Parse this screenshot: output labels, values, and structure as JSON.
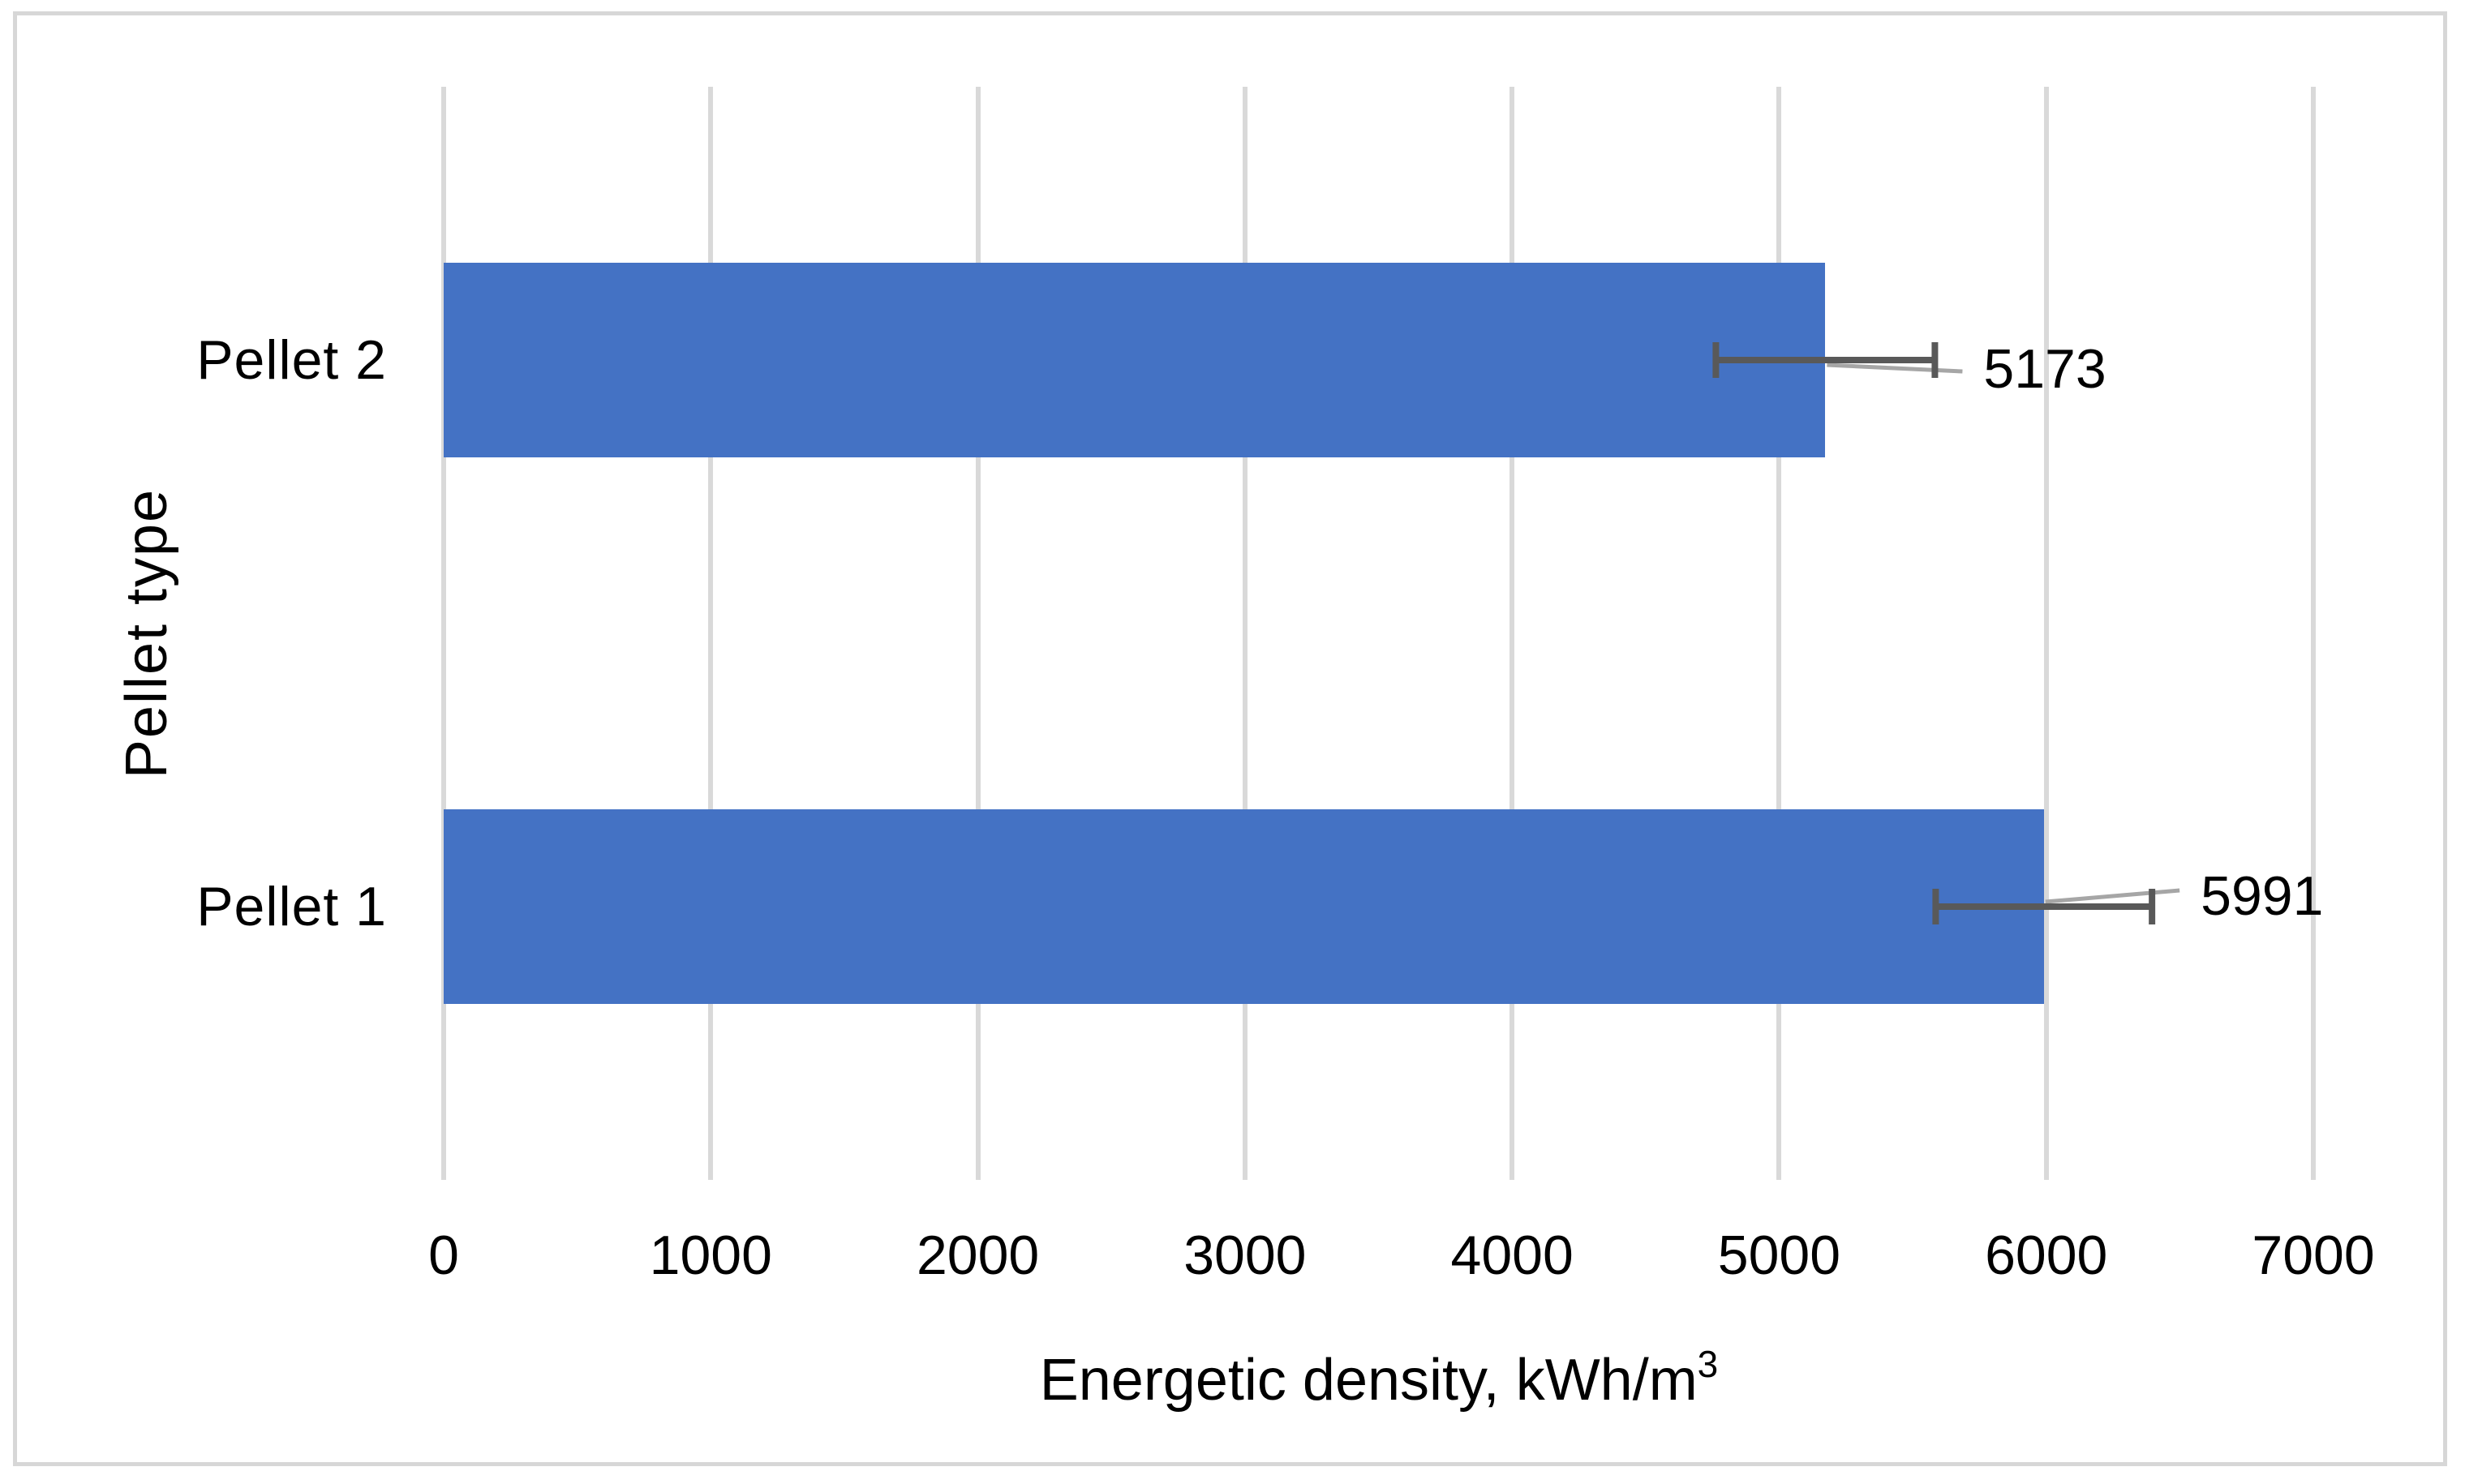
{
  "figure": {
    "background": "#ffffff",
    "border_color": "#d7d7d7"
  },
  "chart_data": {
    "type": "bar",
    "orientation": "horizontal",
    "title": "",
    "categories": [
      "Pellet 1",
      "Pellet 2"
    ],
    "series": [
      {
        "name": "Energetic density",
        "values": [
          5991,
          5173
        ],
        "errors_minus": [
          405,
          410
        ],
        "errors_plus": [
          405,
          410
        ],
        "data_labels": [
          "5991",
          "5173"
        ]
      }
    ],
    "xlabel": "Energetic density, kWh/m",
    "xlabel_sup": "3",
    "ylabel": "Pellet type",
    "xlim": [
      0,
      7000
    ],
    "xticks": [
      0,
      1000,
      2000,
      3000,
      4000,
      5000,
      6000,
      7000
    ],
    "xtick_labels": [
      "0",
      "1000",
      "2000",
      "3000",
      "4000",
      "5000",
      "6000",
      "7000"
    ],
    "grid": "vertical",
    "legend": false,
    "bar_color": "#4472c4",
    "gridline_color": "#d9d9d9",
    "error_bar_color": "#595959",
    "leader_line_color": "#a6a6a6",
    "text_color": "#000000"
  }
}
